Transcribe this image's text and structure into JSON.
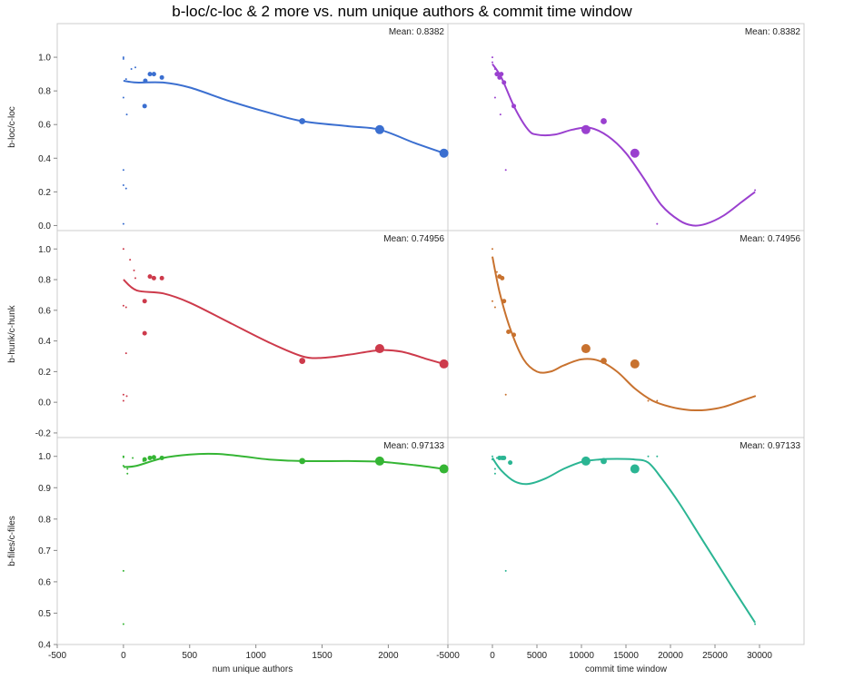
{
  "title": "b-loc/c-loc & 2 more vs. num unique authors & commit time window",
  "chart_data": {
    "type": "scatter",
    "title": "b-loc/c-loc & 2 more vs. num unique authors & commit time window",
    "columns": [
      {
        "xlabel": "num unique authors",
        "xlim": [
          -500,
          2450
        ],
        "ticks": [
          -500,
          0,
          500,
          1000,
          1500,
          2000
        ]
      },
      {
        "xlabel": "commit time window",
        "xlim": [
          -5000,
          35000
        ],
        "ticks": [
          -5000,
          0,
          5000,
          10000,
          15000,
          20000,
          25000,
          30000
        ]
      }
    ],
    "rows": [
      {
        "ylabel": "b-loc/c-loc",
        "ylim": [
          -0.03,
          1.2
        ],
        "yticks": [
          "0.0",
          "0.2",
          "0.4",
          "0.6",
          "0.8",
          "1.0"
        ],
        "mean_label": "Mean: 0.8382",
        "colors": [
          "#3b6fd0",
          "#9a40cf"
        ],
        "panels": [
          {
            "points": [
              [
                0,
                1.0,
                1
              ],
              [
                0,
                0.99,
                1
              ],
              [
                0,
                0.76,
                1
              ],
              [
                0,
                0.33,
                1
              ],
              [
                0,
                0.24,
                1
              ],
              [
                0,
                0.01,
                1
              ],
              [
                20,
                0.87,
                1
              ],
              [
                20,
                0.22,
                1
              ],
              [
                25,
                0.66,
                1
              ],
              [
                60,
                0.93,
                1
              ],
              [
                90,
                0.94,
                1
              ],
              [
                160,
                0.71,
                2
              ],
              [
                165,
                0.86,
                2
              ],
              [
                200,
                0.9,
                2
              ],
              [
                230,
                0.9,
                2
              ],
              [
                290,
                0.88,
                2
              ],
              [
                1350,
                0.62,
                3
              ],
              [
                1935,
                0.57,
                5
              ],
              [
                2420,
                0.43,
                5
              ]
            ],
            "curve": [
              [
                0,
                0.86
              ],
              [
                100,
                0.85
              ],
              [
                300,
                0.85
              ],
              [
                500,
                0.82
              ],
              [
                800,
                0.74
              ],
              [
                1100,
                0.67
              ],
              [
                1350,
                0.62
              ],
              [
                1700,
                0.59
              ],
              [
                1935,
                0.57
              ],
              [
                2200,
                0.49
              ],
              [
                2420,
                0.43
              ]
            ]
          },
          {
            "points": [
              [
                0,
                1.0,
                1
              ],
              [
                0,
                0.97,
                1
              ],
              [
                300,
                0.93,
                1
              ],
              [
                300,
                0.76,
                1
              ],
              [
                500,
                0.9,
                2
              ],
              [
                800,
                0.88,
                2
              ],
              [
                900,
                0.66,
                1
              ],
              [
                1000,
                0.9,
                2
              ],
              [
                1300,
                0.85,
                2
              ],
              [
                1500,
                0.33,
                1
              ],
              [
                2400,
                0.71,
                2
              ],
              [
                10500,
                0.57,
                5
              ],
              [
                12500,
                0.62,
                3
              ],
              [
                16000,
                0.43,
                5
              ],
              [
                17500,
                0.24,
                1
              ],
              [
                18500,
                0.01,
                1
              ],
              [
                29500,
                0.21,
                1
              ]
            ],
            "curve": [
              [
                0,
                0.96
              ],
              [
                1000,
                0.88
              ],
              [
                2500,
                0.7
              ],
              [
                4000,
                0.57
              ],
              [
                5000,
                0.54
              ],
              [
                7000,
                0.54
              ],
              [
                9000,
                0.57
              ],
              [
                11000,
                0.58
              ],
              [
                13000,
                0.53
              ],
              [
                15000,
                0.43
              ],
              [
                17000,
                0.28
              ],
              [
                19000,
                0.12
              ],
              [
                21000,
                0.03
              ],
              [
                22500,
                0.0
              ],
              [
                24000,
                0.01
              ],
              [
                26000,
                0.06
              ],
              [
                28000,
                0.14
              ],
              [
                29500,
                0.2
              ]
            ]
          }
        ]
      },
      {
        "ylabel": "b-hunk/c-hunk",
        "ylim": [
          -0.23,
          1.12
        ],
        "yticks": [
          "-0.2",
          "0.0",
          "0.2",
          "0.4",
          "0.6",
          "0.8",
          "1.0"
        ],
        "mean_label": "Mean: 0.74956",
        "colors": [
          "#cd3a4b",
          "#c8722f"
        ],
        "panels": [
          {
            "points": [
              [
                0,
                1.0,
                1
              ],
              [
                0,
                0.63,
                1
              ],
              [
                0,
                0.05,
                1
              ],
              [
                0,
                0.01,
                1
              ],
              [
                20,
                0.32,
                1
              ],
              [
                20,
                0.62,
                1
              ],
              [
                25,
                0.04,
                1
              ],
              [
                50,
                0.93,
                1
              ],
              [
                80,
                0.86,
                1
              ],
              [
                90,
                0.81,
                1
              ],
              [
                160,
                0.66,
                2
              ],
              [
                160,
                0.45,
                2
              ],
              [
                200,
                0.82,
                2
              ],
              [
                230,
                0.81,
                2
              ],
              [
                290,
                0.81,
                2
              ],
              [
                1350,
                0.27,
                3
              ],
              [
                1935,
                0.35,
                5
              ],
              [
                2420,
                0.25,
                5
              ]
            ],
            "curve": [
              [
                0,
                0.8
              ],
              [
                100,
                0.73
              ],
              [
                300,
                0.71
              ],
              [
                500,
                0.65
              ],
              [
                800,
                0.52
              ],
              [
                1100,
                0.39
              ],
              [
                1350,
                0.3
              ],
              [
                1500,
                0.29
              ],
              [
                1700,
                0.31
              ],
              [
                1935,
                0.34
              ],
              [
                2100,
                0.33
              ],
              [
                2300,
                0.28
              ],
              [
                2420,
                0.25
              ]
            ]
          },
          {
            "points": [
              [
                0,
                1.0,
                1
              ],
              [
                0,
                0.66,
                1
              ],
              [
                300,
                0.62,
                1
              ],
              [
                500,
                0.85,
                1
              ],
              [
                800,
                0.82,
                2
              ],
              [
                1100,
                0.81,
                2
              ],
              [
                1300,
                0.66,
                2
              ],
              [
                1500,
                0.05,
                1
              ],
              [
                1800,
                0.46,
                2
              ],
              [
                2400,
                0.44,
                2
              ],
              [
                10500,
                0.35,
                5
              ],
              [
                12500,
                0.27,
                3
              ],
              [
                16000,
                0.25,
                5
              ],
              [
                17500,
                0.01,
                1
              ],
              [
                18500,
                0.01,
                1
              ],
              [
                29500,
                0.04,
                1
              ]
            ],
            "curve": [
              [
                0,
                0.95
              ],
              [
                800,
                0.72
              ],
              [
                2000,
                0.48
              ],
              [
                3500,
                0.28
              ],
              [
                5000,
                0.2
              ],
              [
                6500,
                0.2
              ],
              [
                8000,
                0.24
              ],
              [
                10000,
                0.28
              ],
              [
                12000,
                0.27
              ],
              [
                14000,
                0.2
              ],
              [
                16000,
                0.09
              ],
              [
                18000,
                0.01
              ],
              [
                20000,
                -0.03
              ],
              [
                22000,
                -0.05
              ],
              [
                24000,
                -0.05
              ],
              [
                26000,
                -0.03
              ],
              [
                28000,
                0.01
              ],
              [
                29500,
                0.04
              ]
            ]
          }
        ]
      },
      {
        "ylabel": "b-files/c-files",
        "ylim": [
          0.4,
          1.06
        ],
        "yticks": [
          "0.4",
          "0.5",
          "0.6",
          "0.7",
          "0.8",
          "0.9",
          "1.0"
        ],
        "mean_label": "Mean: 0.97133",
        "colors": [
          "#35b534",
          "#2bb593"
        ],
        "panels": [
          {
            "points": [
              [
                0,
                1.0,
                1
              ],
              [
                0,
                0.997,
                1
              ],
              [
                0,
                0.97,
                1
              ],
              [
                0,
                0.635,
                1
              ],
              [
                0,
                0.465,
                1
              ],
              [
                30,
                0.96,
                1
              ],
              [
                30,
                0.945,
                1
              ],
              [
                70,
                0.995,
                1
              ],
              [
                150,
                0.985,
                1
              ],
              [
                160,
                0.99,
                2
              ],
              [
                200,
                0.995,
                2
              ],
              [
                230,
                0.997,
                2
              ],
              [
                290,
                0.995,
                2
              ],
              [
                1350,
                0.985,
                3
              ],
              [
                1935,
                0.985,
                5
              ],
              [
                2420,
                0.96,
                5
              ]
            ],
            "curve": [
              [
                0,
                0.966
              ],
              [
                100,
                0.97
              ],
              [
                300,
                0.995
              ],
              [
                500,
                1.006
              ],
              [
                700,
                1.008
              ],
              [
                900,
                1.0
              ],
              [
                1100,
                0.99
              ],
              [
                1350,
                0.985
              ],
              [
                1700,
                0.985
              ],
              [
                1935,
                0.983
              ],
              [
                2200,
                0.972
              ],
              [
                2420,
                0.96
              ]
            ]
          },
          {
            "points": [
              [
                0,
                1.0,
                1
              ],
              [
                0,
                0.99,
                1
              ],
              [
                300,
                0.96,
                1
              ],
              [
                300,
                0.945,
                1
              ],
              [
                500,
                0.995,
                1
              ],
              [
                800,
                0.995,
                2
              ],
              [
                1100,
                0.995,
                2
              ],
              [
                1300,
                0.995,
                2
              ],
              [
                1500,
                0.635,
                1
              ],
              [
                2000,
                0.98,
                2
              ],
              [
                10500,
                0.985,
                5
              ],
              [
                12500,
                0.985,
                3
              ],
              [
                16000,
                0.96,
                5
              ],
              [
                17500,
                1.0,
                1
              ],
              [
                18500,
                1.0,
                1
              ],
              [
                29500,
                0.465,
                1
              ]
            ],
            "curve": [
              [
                0,
                0.995
              ],
              [
                1000,
                0.955
              ],
              [
                2500,
                0.92
              ],
              [
                4000,
                0.912
              ],
              [
                6000,
                0.93
              ],
              [
                8000,
                0.96
              ],
              [
                10000,
                0.982
              ],
              [
                12000,
                0.99
              ],
              [
                14000,
                0.992
              ],
              [
                16000,
                0.99
              ],
              [
                17500,
                0.98
              ],
              [
                19000,
                0.93
              ],
              [
                21000,
                0.85
              ],
              [
                23000,
                0.76
              ],
              [
                25000,
                0.67
              ],
              [
                27000,
                0.58
              ],
              [
                29500,
                0.47
              ]
            ]
          }
        ]
      }
    ]
  }
}
